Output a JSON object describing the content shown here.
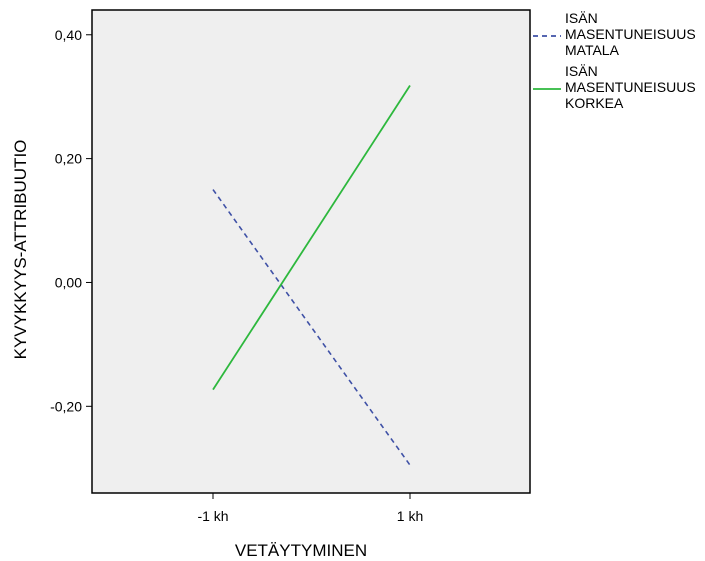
{
  "chart_data": {
    "type": "line",
    "categories": [
      "-1 kh",
      "1 kh"
    ],
    "xlabel": "VETÄYTYMINEN",
    "ylabel": "KYVYKKYYS-ATTRIBUUTIO",
    "ylim": [
      -0.34,
      0.44
    ],
    "yticks": [
      {
        "value": 0.4,
        "label": "0,40"
      },
      {
        "value": 0.2,
        "label": "0,20"
      },
      {
        "value": 0.0,
        "label": "0,00"
      },
      {
        "value": -0.2,
        "label": "-0,20"
      }
    ],
    "grid": false,
    "plot_background": "#efefef",
    "legend_position": "right",
    "series": [
      {
        "name_lines": [
          "ISÄN",
          "MASENTUNEISUUS",
          "MATALA"
        ],
        "values": [
          0.15,
          -0.295
        ],
        "color": "#3f51a6",
        "dashed": true
      },
      {
        "name_lines": [
          "ISÄN",
          "MASENTUNEISUUS",
          "KORKEA"
        ],
        "values": [
          -0.173,
          0.318
        ],
        "color": "#2db83d",
        "dashed": false
      }
    ]
  }
}
